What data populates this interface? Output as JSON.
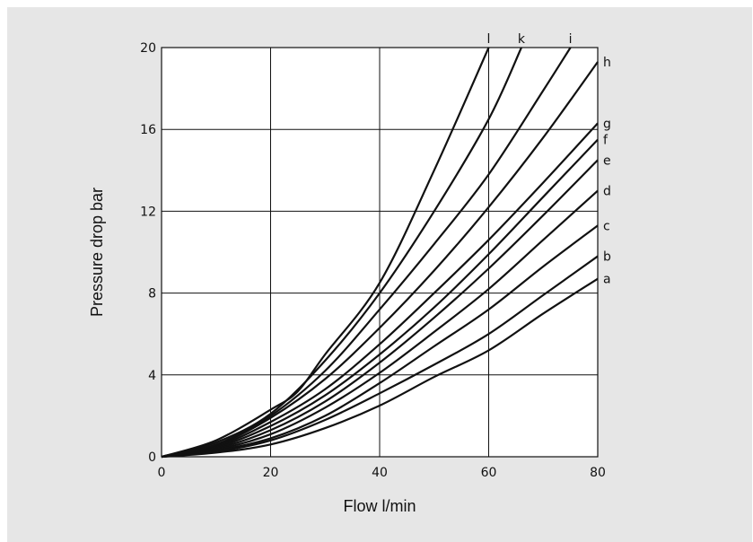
{
  "chart_data": {
    "type": "line",
    "xlabel": "Flow l/min",
    "ylabel": "Pressure drop bar",
    "xlim": [
      0,
      80
    ],
    "ylim": [
      0,
      20
    ],
    "x_ticks": [
      "0",
      "20",
      "40",
      "60",
      "80"
    ],
    "y_ticks": [
      "0",
      "4",
      "8",
      "12",
      "16",
      "20"
    ],
    "grid": true,
    "colors": {
      "background": "#e6e6e6",
      "plot": "#ffffff",
      "line": "#111111"
    },
    "series": [
      {
        "name": "a",
        "x": [
          0,
          10,
          20,
          30,
          40,
          50,
          60,
          70,
          80
        ],
        "y": [
          0,
          0.2,
          0.6,
          1.4,
          2.5,
          3.9,
          5.2,
          7.0,
          8.7
        ]
      },
      {
        "name": "b",
        "x": [
          0,
          10,
          20,
          30,
          40,
          50,
          60,
          70,
          80
        ],
        "y": [
          0,
          0.25,
          0.8,
          1.8,
          3.1,
          4.5,
          6.0,
          7.9,
          9.8
        ]
      },
      {
        "name": "c",
        "x": [
          0,
          10,
          20,
          30,
          40,
          50,
          60,
          70,
          80
        ],
        "y": [
          0,
          0.3,
          0.9,
          2.0,
          3.6,
          5.4,
          7.2,
          9.3,
          11.3
        ]
      },
      {
        "name": "d",
        "x": [
          0,
          10,
          20,
          30,
          40,
          50,
          60,
          70,
          80
        ],
        "y": [
          0,
          0.35,
          1.1,
          2.4,
          4.1,
          6.1,
          8.2,
          10.6,
          13.0
        ]
      },
      {
        "name": "e",
        "x": [
          0,
          10,
          20,
          30,
          40,
          50,
          60,
          70,
          80
        ],
        "y": [
          0,
          0.4,
          1.3,
          2.7,
          4.6,
          6.8,
          9.2,
          11.8,
          14.5
        ]
      },
      {
        "name": "f",
        "x": [
          0,
          10,
          20,
          30,
          40,
          50,
          60,
          70,
          80
        ],
        "y": [
          0,
          0.45,
          1.5,
          3.0,
          5.0,
          7.3,
          9.9,
          12.7,
          15.5
        ]
      },
      {
        "name": "g",
        "x": [
          0,
          10,
          20,
          30,
          40,
          50,
          60,
          70,
          80
        ],
        "y": [
          0,
          0.5,
          1.7,
          3.3,
          5.5,
          8.0,
          10.6,
          13.4,
          16.3
        ]
      },
      {
        "name": "h",
        "x": [
          0,
          10,
          20,
          30,
          40,
          50,
          60,
          70,
          80
        ],
        "y": [
          0,
          0.55,
          1.9,
          3.8,
          6.3,
          9.1,
          12.2,
          15.6,
          19.3
        ]
      },
      {
        "name": "i",
        "x": [
          0,
          10,
          20,
          30,
          40,
          50,
          60,
          70,
          75
        ],
        "y": [
          0,
          0.6,
          2.0,
          4.2,
          7.2,
          10.4,
          13.8,
          17.9,
          20
        ]
      },
      {
        "name": "k",
        "x": [
          0,
          10,
          20,
          30,
          40,
          50,
          60,
          66
        ],
        "y": [
          0,
          0.7,
          2.1,
          4.7,
          8.0,
          12.0,
          16.5,
          20
        ]
      },
      {
        "name": "l",
        "x": [
          0,
          10,
          20,
          25,
          30,
          40,
          50,
          60
        ],
        "y": [
          0,
          0.8,
          2.3,
          3.2,
          5.0,
          8.5,
          14.0,
          20
        ]
      }
    ]
  }
}
